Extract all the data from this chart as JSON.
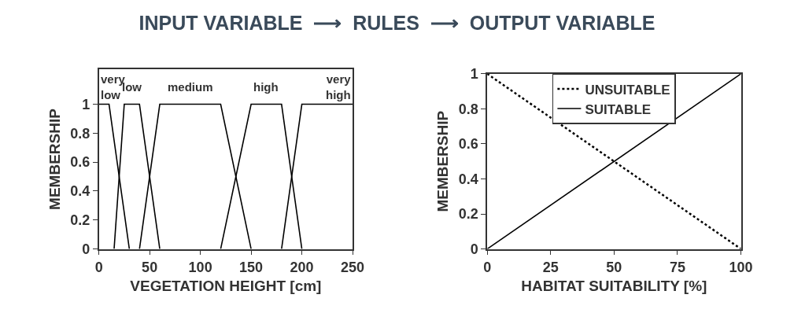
{
  "chart_data": [
    {
      "type": "line",
      "title": "INPUT VARIABLE  ⟶  RULES  ⟶  OUTPUT VARIABLE",
      "xlabel": "VEGETATION HEIGHT [cm]",
      "ylabel": "MEMBERSHIP",
      "xlim": [
        0,
        250
      ],
      "ylim": [
        0,
        1.24
      ],
      "xticks": [
        0,
        50,
        100,
        150,
        200,
        250
      ],
      "yticks": [
        0,
        0.2,
        0.4,
        0.6,
        0.8,
        1
      ],
      "legend": false,
      "line_style": "solid",
      "marker": "none",
      "series": [
        {
          "name": "very\nlow",
          "color": "#000000",
          "x": [
            0,
            10,
            30
          ],
          "values": [
            1,
            1,
            0
          ]
        },
        {
          "name": "low",
          "color": "#000000",
          "x": [
            15,
            25,
            40,
            60
          ],
          "values": [
            0,
            1,
            1,
            0
          ]
        },
        {
          "name": "medium",
          "color": "#000000",
          "x": [
            40,
            60,
            120,
            150
          ],
          "values": [
            0,
            1,
            1,
            0
          ]
        },
        {
          "name": "high",
          "color": "#000000",
          "x": [
            120,
            150,
            180,
            200
          ],
          "values": [
            0,
            1,
            1,
            0
          ]
        },
        {
          "name": "very\nhigh",
          "color": "#000000",
          "x": [
            180,
            200,
            250
          ],
          "values": [
            0,
            1,
            1
          ]
        }
      ]
    },
    {
      "type": "line",
      "xlabel": "HABITAT SUITABILITY [%]",
      "ylabel": "MEMBERSHIP",
      "xlim": [
        0,
        100
      ],
      "ylim": [
        0,
        1
      ],
      "xticks": [
        0,
        25,
        50,
        75,
        100
      ],
      "yticks": [
        0,
        0.2,
        0.4,
        0.6,
        0.8,
        1
      ],
      "legend": "top",
      "marker": "none",
      "series": [
        {
          "name": "UNSUITABLE",
          "color": "#000000",
          "x": [
            0,
            100
          ],
          "values": [
            1,
            0
          ],
          "line_style": "dotted"
        },
        {
          "name": "SUITABLE",
          "color": "#000000",
          "x": [
            0,
            100
          ],
          "values": [
            0,
            1
          ],
          "line_style": "solid"
        }
      ]
    }
  ]
}
